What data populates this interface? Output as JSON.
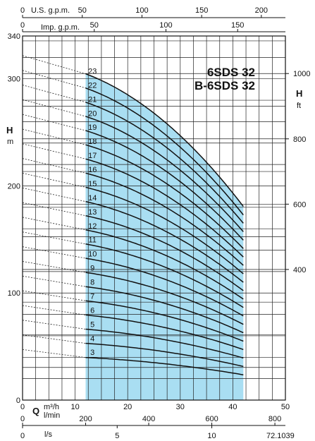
{
  "chart_data": {
    "type": "line",
    "title_lines": [
      "6SDS 32",
      "B-6SDS 32"
    ],
    "figure_code": "72.1039",
    "axes": {
      "us_gpm": {
        "label": "U.S. g.p.m.",
        "ticks": [
          0,
          50,
          100,
          150,
          200
        ]
      },
      "imp_gpm": {
        "label": "Imp. g.p.m.",
        "ticks": [
          0,
          50,
          100,
          150
        ]
      },
      "h_m": {
        "label": "H",
        "unit": "m",
        "ticks": [
          0,
          100,
          200,
          300,
          340
        ],
        "range": [
          0,
          340
        ]
      },
      "h_ft": {
        "label": "H",
        "unit": "ft",
        "ticks": [
          400,
          600,
          800,
          1000
        ],
        "range": [
          0,
          1115
        ]
      },
      "q_m3h": {
        "label": "Q",
        "unit": "m³/h",
        "ticks": [
          0,
          10,
          20,
          30,
          40,
          50
        ],
        "range": [
          0,
          50
        ]
      },
      "q_lmin": {
        "unit": "l/min",
        "ticks": [
          0,
          200,
          400,
          600,
          800
        ]
      },
      "q_ls": {
        "unit": "l/s",
        "ticks": [
          0,
          5,
          10
        ]
      }
    },
    "operating_range": [
      12,
      42
    ],
    "shaded_color": "#a9def2",
    "series": [
      {
        "name": "3",
        "h0": 41.2,
        "h_end": 23.6
      },
      {
        "name": "4",
        "h0": 54.9,
        "h_end": 31.4
      },
      {
        "name": "5",
        "h0": 68.6,
        "h_end": 39.3
      },
      {
        "name": "6",
        "h0": 82.3,
        "h_end": 47.2
      },
      {
        "name": "7",
        "h0": 96.1,
        "h_end": 55.0
      },
      {
        "name": "8",
        "h0": 109.8,
        "h_end": 62.9
      },
      {
        "name": "9",
        "h0": 123.5,
        "h_end": 70.7
      },
      {
        "name": "10",
        "h0": 137.2,
        "h_end": 78.6
      },
      {
        "name": "11",
        "h0": 151.0,
        "h_end": 86.5
      },
      {
        "name": "12",
        "h0": 164.7,
        "h_end": 94.3
      },
      {
        "name": "13",
        "h0": 178.4,
        "h_end": 102.2
      },
      {
        "name": "14",
        "h0": 192.1,
        "h_end": 110.0
      },
      {
        "name": "15",
        "h0": 205.9,
        "h_end": 117.9
      },
      {
        "name": "16",
        "h0": 219.6,
        "h_end": 125.8
      },
      {
        "name": "17",
        "h0": 233.3,
        "h_end": 133.6
      },
      {
        "name": "18",
        "h0": 247.0,
        "h_end": 141.5
      },
      {
        "name": "19",
        "h0": 260.8,
        "h_end": 149.3
      },
      {
        "name": "20",
        "h0": 274.5,
        "h_end": 157.2
      },
      {
        "name": "21",
        "h0": 288.2,
        "h_end": 165.1
      },
      {
        "name": "22",
        "h0": 301.9,
        "h_end": 172.9
      },
      {
        "name": "23",
        "h0": 315.7,
        "h_end": 180.8
      }
    ]
  }
}
